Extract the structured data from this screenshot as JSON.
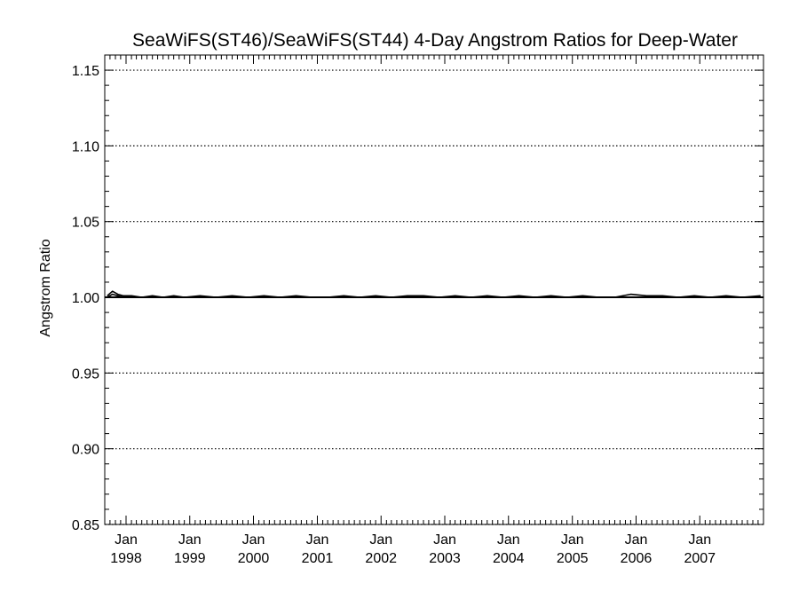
{
  "chart_data": {
    "type": "line",
    "title": "SeaWiFS(ST46)/SeaWiFS(ST44) 4-Day Angstrom Ratios for Deep-Water",
    "xlabel": "",
    "ylabel": "Angstrom Ratio",
    "ylim": [
      0.85,
      1.16
    ],
    "yticks": [
      0.85,
      0.9,
      0.95,
      1.0,
      1.05,
      1.1,
      1.15
    ],
    "ytick_labels": [
      "0.85",
      "0.90",
      "0.95",
      "1.00",
      "1.05",
      "1.10",
      "1.15"
    ],
    "xlim": [
      "1997-09-01",
      "2008-01-01"
    ],
    "xticks": [
      {
        "date": "1998-01-01",
        "month": "Jan",
        "year": "1998"
      },
      {
        "date": "1999-01-01",
        "month": "Jan",
        "year": "1999"
      },
      {
        "date": "2000-01-01",
        "month": "Jan",
        "year": "2000"
      },
      {
        "date": "2001-01-01",
        "month": "Jan",
        "year": "2001"
      },
      {
        "date": "2002-01-01",
        "month": "Jan",
        "year": "2002"
      },
      {
        "date": "2003-01-01",
        "month": "Jan",
        "year": "2003"
      },
      {
        "date": "2004-01-01",
        "month": "Jan",
        "year": "2004"
      },
      {
        "date": "2005-01-01",
        "month": "Jan",
        "year": "2005"
      },
      {
        "date": "2006-01-01",
        "month": "Jan",
        "year": "2006"
      },
      {
        "date": "2007-01-01",
        "month": "Jan",
        "year": "2007"
      }
    ],
    "grid": "dotted horizontal at major y ticks",
    "reference_line": 1.0,
    "series": [
      {
        "x": [
          "1997-09-15",
          "1997-10-15",
          "1997-11-15",
          "1997-12-15",
          "1998-02-01",
          "1998-04-01",
          "1998-06-01",
          "1998-08-01",
          "1998-10-01",
          "1998-12-01",
          "1999-03-01",
          "1999-06-01",
          "1999-09-01",
          "1999-12-01",
          "2000-03-01",
          "2000-06-01",
          "2000-09-01",
          "2000-12-01",
          "2001-03-01",
          "2001-06-01",
          "2001-09-01",
          "2001-12-01",
          "2002-03-01",
          "2002-06-01",
          "2002-09-01",
          "2002-12-01",
          "2003-03-01",
          "2003-06-01",
          "2003-09-01",
          "2003-12-01",
          "2004-03-01",
          "2004-06-01",
          "2004-09-01",
          "2004-12-01",
          "2005-03-01",
          "2005-06-01",
          "2005-09-01",
          "2005-12-01",
          "2006-03-01",
          "2006-06-01",
          "2006-09-01",
          "2006-12-01",
          "2007-03-01",
          "2007-06-01",
          "2007-09-01",
          "2007-12-15"
        ],
        "values": [
          1.001,
          1.004,
          1.002,
          1.001,
          1.001,
          1.0,
          1.001,
          1.0,
          1.001,
          1.0,
          1.001,
          1.0,
          1.001,
          1.0,
          1.001,
          1.0,
          1.001,
          1.0,
          1.0,
          1.001,
          1.0,
          1.001,
          1.0,
          1.001,
          1.001,
          1.0,
          1.001,
          1.0,
          1.001,
          1.0,
          1.001,
          1.0,
          1.001,
          1.0,
          1.001,
          1.0,
          1.0,
          1.002,
          1.001,
          1.001,
          1.0,
          1.001,
          1.0,
          1.001,
          1.0,
          1.001
        ]
      },
      {
        "x": [
          "1997-09-15",
          "1997-10-15",
          "1997-11-15",
          "1997-12-15",
          "1998-02-01",
          "1998-05-01",
          "1998-08-01",
          "1998-11-01",
          "1999-02-01",
          "1999-05-01",
          "1999-08-01",
          "1999-11-01",
          "2000-02-01",
          "2000-05-01",
          "2000-08-01",
          "2000-11-01",
          "2001-02-01",
          "2001-05-01",
          "2001-08-01",
          "2001-11-01",
          "2002-02-01",
          "2002-05-01",
          "2002-08-01",
          "2002-11-01",
          "2003-02-01",
          "2003-05-01",
          "2003-08-01",
          "2003-11-01",
          "2004-02-01",
          "2004-05-01",
          "2004-08-01",
          "2004-11-01",
          "2005-02-01",
          "2005-05-01",
          "2005-08-01",
          "2005-11-01",
          "2006-02-01",
          "2006-05-01",
          "2006-08-01",
          "2006-11-01",
          "2007-02-01",
          "2007-05-01",
          "2007-08-01",
          "2007-12-15"
        ],
        "values": [
          1.0,
          1.002,
          1.001,
          1.0,
          1.0,
          1.0,
          1.0,
          1.0,
          1.0,
          1.0,
          1.0,
          1.0,
          1.0,
          1.0,
          1.0,
          1.0,
          1.0,
          1.0,
          1.0,
          1.0,
          1.0,
          1.0,
          1.0,
          1.0,
          1.0,
          1.0,
          1.0,
          1.0,
          1.0,
          1.0,
          1.0,
          1.0,
          1.0,
          1.0,
          1.0,
          1.0,
          1.0,
          1.001,
          1.0,
          1.0,
          1.0,
          1.0,
          1.0,
          1.0
        ]
      }
    ]
  }
}
